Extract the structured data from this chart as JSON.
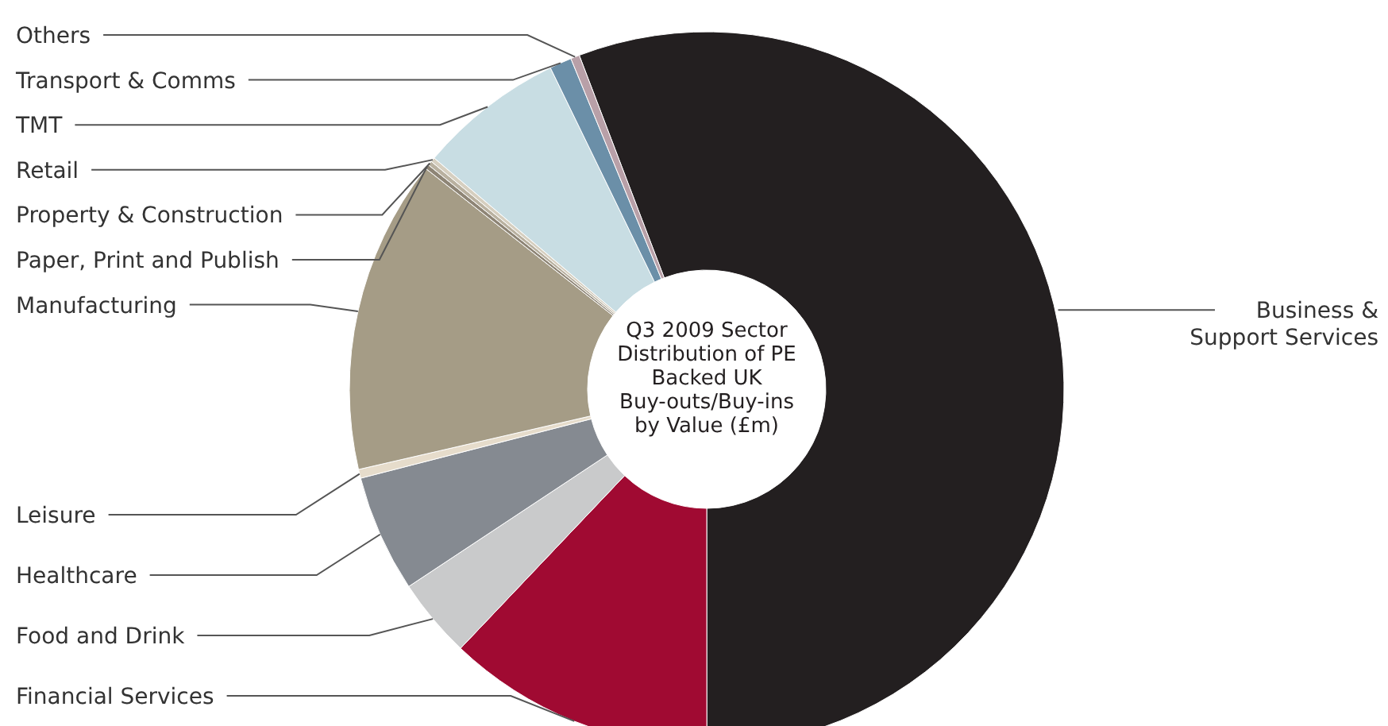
{
  "chart_data": {
    "type": "donut",
    "title": "Q3 2009 Sector Distribution of PE Backed UK Buy-outs/Buy-ins by Value (£m)",
    "categories": [
      "Business & Support Services",
      "Financial Services",
      "Food and Drink",
      "Healthcare",
      "Leisure",
      "Manufacturing",
      "Paper, Print and Publish",
      "Property & Construction",
      "Retail",
      "TMT",
      "Transport & Comms",
      "Others"
    ],
    "values": [
      55.8,
      12.1,
      3.6,
      5.3,
      0.4,
      14.2,
      0.2,
      0.2,
      0.2,
      6.6,
      1.0,
      0.4
    ],
    "colors": [
      "#231f20",
      "#a00a32",
      "#c9cacb",
      "#858a91",
      "#e6dccb",
      "#a59c86",
      "#8e8576",
      "#b9b1a0",
      "#d6cfc0",
      "#c8dde3",
      "#6b8fa8",
      "#b8a0a8"
    ]
  }
}
